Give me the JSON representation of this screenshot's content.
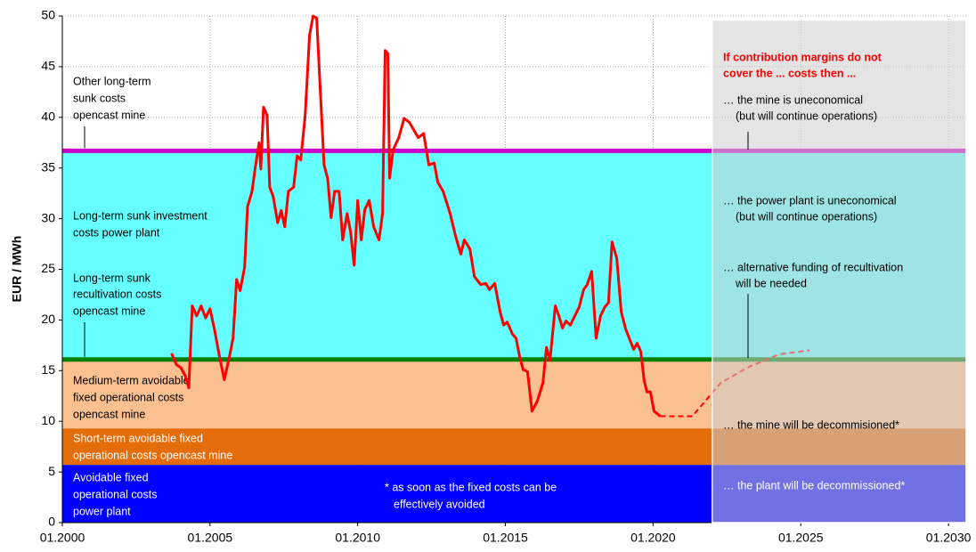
{
  "chart_data": {
    "type": "line",
    "y_label": "EUR / MWh",
    "xlim": [
      2000,
      2030.6
    ],
    "ylim": [
      0,
      50
    ],
    "xticks": [
      {
        "value": 2000,
        "label": "01.2000"
      },
      {
        "value": 2005,
        "label": "01.2005"
      },
      {
        "value": 2010,
        "label": "01.2010"
      },
      {
        "value": 2015,
        "label": "01.2015"
      },
      {
        "value": 2020,
        "label": "01.2020"
      },
      {
        "value": 2025,
        "label": "01.2025"
      },
      {
        "value": 2030,
        "label": "01.2030"
      }
    ],
    "yticks": [
      0,
      5,
      10,
      15,
      20,
      25,
      30,
      35,
      40,
      45,
      50
    ],
    "grid": true,
    "bands": [
      {
        "from": 0,
        "to": 5.7,
        "color": "#0000ff",
        "label_color": "#ffffff",
        "label": [
          "Avoidable fixed",
          "operational costs",
          "power plant"
        ]
      },
      {
        "from": 5.7,
        "to": 9.3,
        "color": "#e46c0a",
        "label_color": "#ffffff",
        "label": [
          "Short-term avoidable fixed",
          "operational costs opencast mine"
        ]
      },
      {
        "from": 9.3,
        "to": 16.1,
        "color": "#fac090",
        "label_color": "#000000",
        "label": [
          "Medium-term avoidable",
          "fixed operational costs",
          "opencast mine"
        ]
      },
      {
        "from": 16.1,
        "to": 36.7,
        "color": "#66ffff",
        "label_color": "#000000",
        "label": [
          "Long-term sunk investment",
          "costs power plant"
        ]
      }
    ],
    "levels": [
      {
        "value": 16.1,
        "color": "#008000",
        "label": [
          "Long-term sunk",
          "recultivation costs",
          "opencast mine"
        ]
      },
      {
        "value": 36.7,
        "color": "#cc00cc",
        "label": [
          "Other long-term",
          "sunk costs",
          "opencast mine"
        ]
      }
    ],
    "shaded_region": {
      "x": [
        2022,
        2030.6
      ],
      "y": [
        0,
        49.6
      ]
    },
    "series": [
      {
        "color": "#ff0000",
        "x": [
          2003.7,
          2003.86,
          2004.01,
          2004.16,
          2004.28,
          2004.4,
          2004.55,
          2004.7,
          2004.85,
          2005.0,
          2005.15,
          2005.3,
          2005.48,
          2005.66,
          2005.78,
          2005.9,
          2006.02,
          2006.17,
          2006.27,
          2006.42,
          2006.54,
          2006.66,
          2006.72,
          2006.81,
          2006.93,
          2007.02,
          2007.14,
          2007.29,
          2007.41,
          2007.53,
          2007.65,
          2007.83,
          2007.95,
          2008.07,
          2008.22,
          2008.37,
          2008.49,
          2008.61,
          2008.73,
          2008.86,
          2008.98,
          2009.1,
          2009.22,
          2009.37,
          2009.49,
          2009.64,
          2009.76,
          2009.88,
          2010.0,
          2010.12,
          2010.24,
          2010.39,
          2010.54,
          2010.72,
          2010.84,
          2010.93,
          2011.02,
          2011.08,
          2011.2,
          2011.39,
          2011.57,
          2011.75,
          2011.93,
          2012.05,
          2012.23,
          2012.41,
          2012.59,
          2012.71,
          2012.89,
          2013.13,
          2013.31,
          2013.49,
          2013.61,
          2013.8,
          2013.95,
          2014.16,
          2014.34,
          2014.46,
          2014.64,
          2014.82,
          2014.94,
          2015.06,
          2015.24,
          2015.36,
          2015.48,
          2015.6,
          2015.75,
          2015.9,
          2016.08,
          2016.27,
          2016.39,
          2016.51,
          2016.69,
          2016.81,
          2016.93,
          2017.05,
          2017.2,
          2017.35,
          2017.5,
          2017.65,
          2017.77,
          2017.92,
          2018.07,
          2018.22,
          2018.37,
          2018.49,
          2018.61,
          2018.77,
          2018.92,
          2019.07,
          2019.22,
          2019.34,
          2019.46,
          2019.58,
          2019.7,
          2019.79,
          2019.91,
          2020.03,
          2020.24
        ],
        "values": [
          16.7,
          15.6,
          15.3,
          14.5,
          13.3,
          21.4,
          20.4,
          21.4,
          20.2,
          21.1,
          19.1,
          16.7,
          14.1,
          16.4,
          18.2,
          24.0,
          22.9,
          25.2,
          31.2,
          32.7,
          35.2,
          37.5,
          34.9,
          41.0,
          40.2,
          33.1,
          32.2,
          29.6,
          30.8,
          29.2,
          32.7,
          33.1,
          36.2,
          35.8,
          40.2,
          48.1,
          50,
          49.8,
          42.8,
          35.3,
          34.0,
          30.1,
          32.7,
          32.7,
          27.9,
          30.5,
          28.7,
          25.4,
          31.8,
          27.9,
          30.9,
          31.8,
          29.2,
          27.9,
          30.5,
          46.6,
          46.3,
          34.0,
          36.8,
          38.0,
          39.9,
          39.5,
          38.6,
          38.0,
          38.4,
          35.3,
          35.5,
          33.6,
          32.7,
          30.5,
          28.3,
          26.5,
          27.9,
          27.0,
          24.3,
          23.5,
          23.6,
          23.0,
          23.6,
          20.8,
          19.5,
          19.8,
          18.6,
          18.2,
          16.4,
          15.1,
          14.9,
          11.0,
          12.0,
          13.8,
          17.3,
          16.0,
          21.4,
          20.4,
          19.2,
          19.9,
          19.5,
          20.4,
          21.3,
          23.0,
          23.5,
          24.8,
          18.2,
          20.4,
          21.3,
          21.7,
          27.7,
          26.1,
          20.8,
          19.1,
          18.0,
          17.1,
          17.7,
          16.9,
          14.0,
          12.9,
          12.9,
          11.0,
          10.5
        ]
      },
      {
        "color": "#ff0000",
        "dashed": true,
        "x": [
          2020.24,
          2021.33,
          2022.29,
          2023.19,
          2024.25,
          2025.3
        ],
        "values": [
          10.5,
          10.5,
          13.8,
          15.3,
          16.6,
          17.0
        ]
      }
    ],
    "region_title": [
      "If contribution margins do not",
      "cover the  ... costs then ..."
    ],
    "region_notes": [
      {
        "text": [
          "… the mine is uneconomical",
          "(but will continue operations)"
        ],
        "color": "#000000"
      },
      {
        "text": [
          "… the power plant is uneconomical",
          "(but will continue operations)"
        ],
        "color": "#000000"
      },
      {
        "text": [
          "… alternative funding of recultivation",
          "will be needed"
        ],
        "color": "#000000"
      },
      {
        "text": [
          "… the mine will be decommisioned*"
        ],
        "color": "#000000"
      },
      {
        "text": [
          "… the plant will be decommissioned*"
        ],
        "color": "#ffffff"
      }
    ],
    "footnote": [
      "* as soon as the fixed costs can be",
      "effectively avoided"
    ]
  }
}
